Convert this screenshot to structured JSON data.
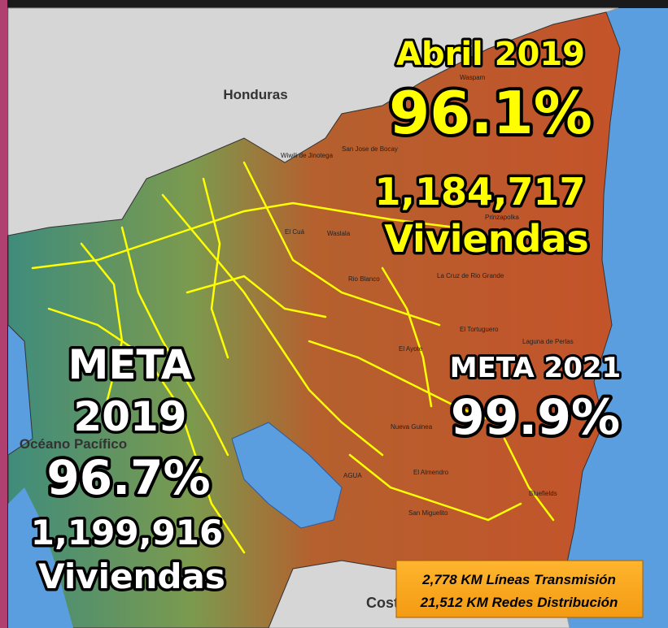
{
  "map": {
    "country_labels": {
      "honduras": "Honduras",
      "costa_rica": "Costa",
      "ocean": "Océano Pacífico"
    },
    "places": [
      "Waspam",
      "San Jose de Bocay",
      "Wiwili de Jinotega",
      "Prinzapolka",
      "El Cuá",
      "Waslala",
      "Rio Blanco",
      "La Cruz de Rio Grande",
      "El Tortuguero",
      "Laguna de Perlas",
      "El Ayote",
      "Nueva Guinea",
      "El Almendro",
      "San Miguelito",
      "Bluefields",
      "AGUA"
    ]
  },
  "current": {
    "date": "Abril 2019",
    "percent": "96.1%",
    "homes": "1,184,717",
    "homes_unit": "Viviendas"
  },
  "goal_2019": {
    "label": "META",
    "year": "2019",
    "percent": "96.7%",
    "homes": "1,199,916",
    "homes_unit": "Viviendas"
  },
  "goal_2021": {
    "label": "META 2021",
    "percent": "99.9%"
  },
  "network": {
    "transmission": "2,778 KM Líneas Transmisión",
    "distribution": "21,512 KM Redes Distribución"
  }
}
